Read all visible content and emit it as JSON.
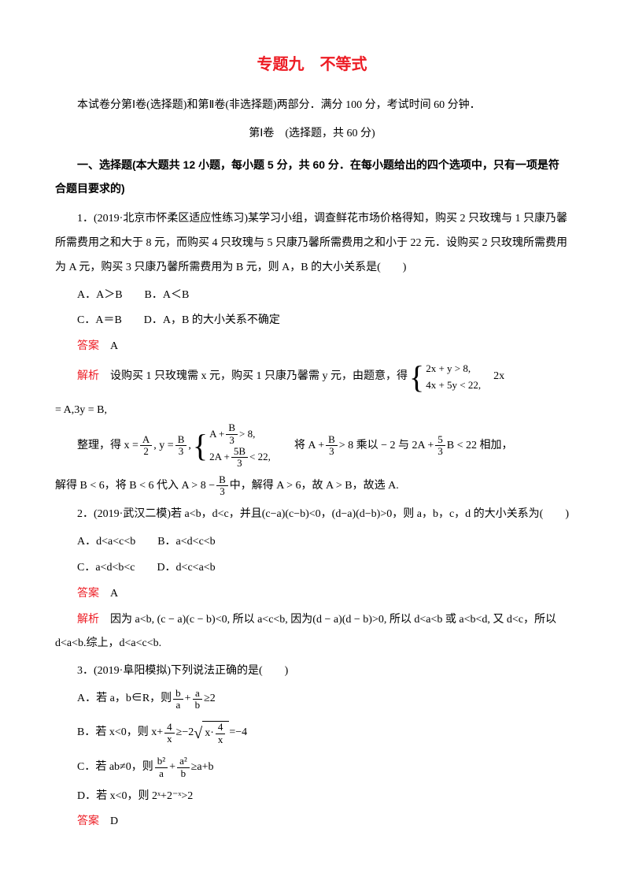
{
  "title": "专题九　不等式",
  "intro": "本试卷分第Ⅰ卷(选择题)和第Ⅱ卷(非选择题)两部分．满分 100 分，考试时间 60 分钟．",
  "sectionInfo": "第Ⅰ卷　(选择题，共 60 分)",
  "sectionHead": "一、选择题(本大题共 12 小题，每小题 5 分，共 60 分．在每小题给出的四个选项中，只有一项是符合题目要求的)",
  "q1": {
    "stem1": "1．(2019·北京市怀柔区适应性练习)某学习小组，调查鲜花市场价格得知，购买 2 只玫瑰与 1 只康乃馨所需费用之和大于 8 元，而购买 4 只玫瑰与 5 只康乃馨所需费用之和小于 22 元．设购买 2 只玫瑰所需费用为 A 元，购买 3 只康乃馨所需费用为 B 元，则 A，B 的大小关系是(　　)",
    "optA": "A．A＞B　　B．A＜B",
    "optC": "C．A＝B　　D．A，B 的大小关系不确定",
    "ansLabel": "答案",
    "ansVal": "　A",
    "expLabel": "解析",
    "exp1a": "　设购买 1 只玫瑰需 x 元，购买 1 只康乃馨需 y 元，由题意，得",
    "b1_a": "2x + y > 8,",
    "b1_b": "4x + 5y < 22,",
    "exp1b": "　2x",
    "exp1c": "= A,3y = B,",
    "exp2a": "整理，得 x =",
    "f1n": "A",
    "f1d": "2",
    "exp2b": " , y =",
    "f2n": "B",
    "f2d": "3",
    "exp2c": " ,",
    "b2_a_pre": "A + ",
    "b2_a_fn": "B",
    "b2_a_fd": "3",
    "b2_a_post": " > 8,",
    "b2_b_pre": "2A + ",
    "b2_b_fn": "5B",
    "b2_b_fd": "3",
    "b2_b_post": " < 22,",
    "exp2d": "　　将 A + ",
    "f3n": "B",
    "f3d": "3",
    "exp2e": " > 8 乘以 − 2 与 2A + ",
    "f4n": "5",
    "f4d": "3",
    "exp2f": "B < 22 相加，",
    "exp3a": "解得 B < 6，将 B < 6 代入 A > 8 − ",
    "f5n": "B",
    "f5d": "3",
    "exp3b": "中，解得 A > 6，故 A > B，故选 A."
  },
  "q2": {
    "stem": "2．(2019·武汉二模)若 a<b，d<c，并且(c−a)(c−b)<0，(d−a)(d−b)>0，则 a，b，c，d 的大小关系为(　　)",
    "optA": "A．d<a<c<b　　B．a<d<c<b",
    "optC": "C．a<d<b<c　　D．d<c<a<b",
    "ansLabel": "答案",
    "ansVal": "　A",
    "expLabel": "解析",
    "exp": "　因为 a<b, (c − a)(c − b)<0, 所以 a<c<b, 因为(d − a)(d − b)>0, 所以 d<a<b 或 a<b<d, 又 d<c，所以 d<a<b.综上，d<a<c<b."
  },
  "q3": {
    "stem": "3．(2019·阜阳模拟)下列说法正确的是(　　)",
    "optA_pre": "A．若 a，b∈R，则",
    "fa1n": "b",
    "fa1d": "a",
    "optA_mid": "+",
    "fa2n": "a",
    "fa2d": "b",
    "optA_post": "≥2",
    "optB_pre": "B．若 x<0，则 x+",
    "fb1n": "4",
    "fb1d": "x",
    "optB_mid": "≥−2",
    "fb2n": "4",
    "fb2d": "x",
    "optB_sqrt_pre": "x·",
    "optB_post": "=−4",
    "optC_pre": "C．若 ab≠0，则",
    "fc1n": "b²",
    "fc1d": "a",
    "optC_mid": "+",
    "fc2n": "a²",
    "fc2d": "b",
    "optC_post": "≥a+b",
    "optD": "D．若 x<0，则 2ˣ+2⁻ˣ>2",
    "ansLabel": "答案",
    "ansVal": "　D"
  }
}
